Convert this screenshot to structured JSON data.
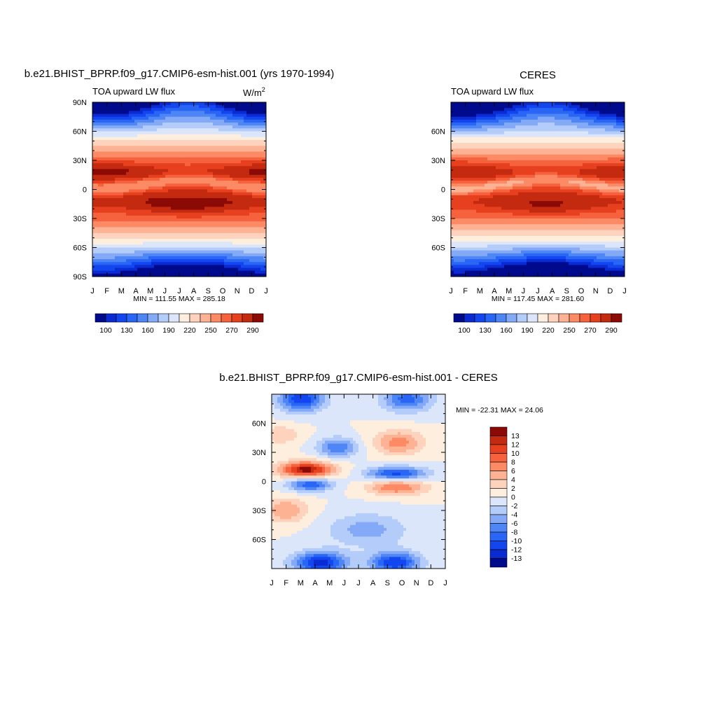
{
  "figure": {
    "panels": [
      {
        "title": "b.e21.BHIST_BPRP.f09_g17.CMIP6-esm-hist.001 (yrs 1970-1994)",
        "subtitle": "TOA upward LW flux",
        "units_label": "W/m",
        "units_sup": "2",
        "minmax": "MIN = 111.55 MAX = 285.18"
      },
      {
        "title": "CERES",
        "subtitle": "TOA upward LW flux",
        "units_label": "",
        "units_sup": "",
        "minmax": "MIN = 117.45 MAX = 281.60"
      },
      {
        "title": "b.e21.BHIST_BPRP.f09_g17.CMIP6-esm-hist.001 - CERES",
        "subtitle": "",
        "units_label": "",
        "units_sup": "",
        "minmax": "MIN = -22.31 MAX =  24.06"
      }
    ],
    "x_tick_labels": [
      "J",
      "F",
      "M",
      "A",
      "M",
      "J",
      "J",
      "A",
      "S",
      "O",
      "N",
      "D",
      "J"
    ],
    "y_tick_labels_panel1": [
      "90N",
      "60N",
      "30N",
      "0",
      "30S",
      "60S",
      "90S"
    ],
    "y_tick_labels_panel2": [
      "60N",
      "30N",
      "0",
      "30S",
      "60S"
    ],
    "y_tick_labels_panel3": [
      "60N",
      "30N",
      "0",
      "30S",
      "60S"
    ],
    "colorbar_abs_labels": [
      "100",
      "130",
      "160",
      "190",
      "220",
      "250",
      "270",
      "290"
    ],
    "colorbar_abs_colors": [
      "#000a8c",
      "#0a2ad2",
      "#1446f0",
      "#2a66f5",
      "#4f86f5",
      "#84aaf7",
      "#b4ccf9",
      "#dbe6fa",
      "#fdeede",
      "#fdd3bd",
      "#fcb293",
      "#fb8a65",
      "#f6623e",
      "#e6401e",
      "#c42a0f",
      "#8c0a05"
    ],
    "colorbar_diff_labels": [
      "13",
      "12",
      "10",
      "8",
      "6",
      "4",
      "2",
      "0",
      "-2",
      "-4",
      "-6",
      "-8",
      "-10",
      "-12",
      "-13"
    ],
    "colorbar_diff_colors": [
      "#8c0a05",
      "#c42a0f",
      "#e6401e",
      "#f6623e",
      "#fb8a65",
      "#fcb293",
      "#fdd3bd",
      "#fdeede",
      "#dbe6fa",
      "#b4ccf9",
      "#84aaf7",
      "#4f86f5",
      "#2a66f5",
      "#1446f0",
      "#0a2ad2",
      "#000a8c"
    ]
  },
  "chart_data": [
    {
      "type": "heatmap",
      "title": "b.e21.BHIST_BPRP.f09_g17.CMIP6-esm-hist.001 (yrs 1970-1994)",
      "subtitle": "TOA upward LW flux",
      "units": "W/m2",
      "x_categories": [
        "J",
        "F",
        "M",
        "A",
        "M",
        "J",
        "J",
        "A",
        "S",
        "O",
        "N",
        "D",
        "J"
      ],
      "y_ticks": [
        "90N",
        "60N",
        "30N",
        "0",
        "30S",
        "60S",
        "90S"
      ],
      "y_range": [
        -90,
        90
      ],
      "min": 111.55,
      "max": 285.18,
      "colorbar_levels": [
        100,
        110,
        120,
        130,
        140,
        150,
        160,
        170,
        180,
        190,
        200,
        210,
        220,
        230,
        240,
        250,
        260,
        270,
        280,
        290
      ]
    },
    {
      "type": "heatmap",
      "title": "CERES",
      "subtitle": "TOA upward LW flux",
      "x_categories": [
        "J",
        "F",
        "M",
        "A",
        "M",
        "J",
        "J",
        "A",
        "S",
        "O",
        "N",
        "D",
        "J"
      ],
      "y_ticks": [
        "60N",
        "30N",
        "0",
        "30S",
        "60S"
      ],
      "y_range": [
        -90,
        90
      ],
      "min": 117.45,
      "max": 281.6
    },
    {
      "type": "heatmap",
      "title": "b.e21.BHIST_BPRP.f09_g17.CMIP6-esm-hist.001 - CERES",
      "x_categories": [
        "J",
        "F",
        "M",
        "A",
        "M",
        "J",
        "J",
        "A",
        "S",
        "O",
        "N",
        "D",
        "J"
      ],
      "y_ticks": [
        "60N",
        "30N",
        "0",
        "30S",
        "60S"
      ],
      "y_range": [
        -90,
        90
      ],
      "min": -22.31,
      "max": 24.06,
      "colorbar_levels": [
        -13,
        -12,
        -10,
        -8,
        -6,
        -4,
        -2,
        0,
        2,
        4,
        6,
        8,
        10,
        12,
        13
      ]
    }
  ]
}
